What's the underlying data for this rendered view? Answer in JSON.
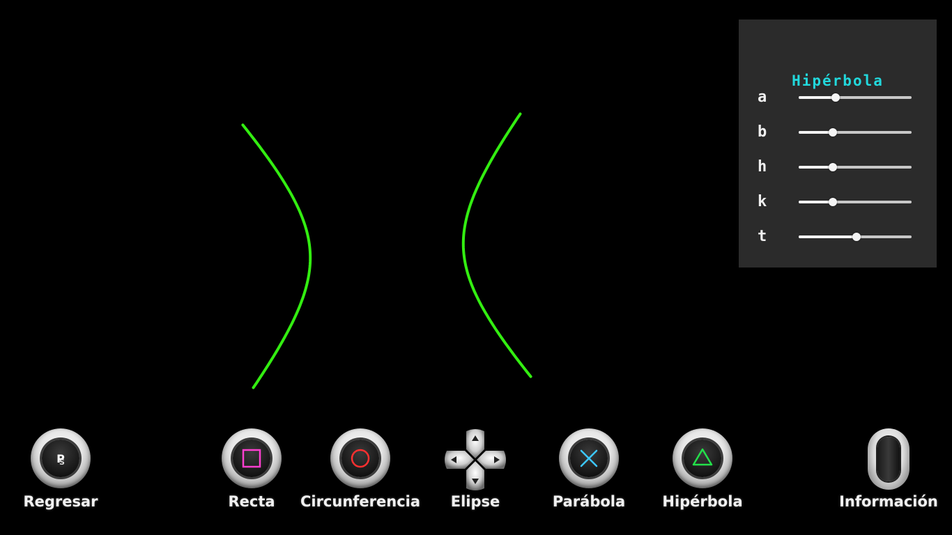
{
  "panel": {
    "title": "Hipérbola",
    "params": [
      {
        "label": "a",
        "value": 0.33
      },
      {
        "label": "b",
        "value": 0.3
      },
      {
        "label": "h",
        "value": 0.3
      },
      {
        "label": "k",
        "value": 0.3
      },
      {
        "label": "t",
        "value": 0.51
      }
    ]
  },
  "curve": {
    "color": "#33ee11"
  },
  "nav": {
    "regresar": "Regresar",
    "recta": "Recta",
    "circunferencia": "Circunferencia",
    "elipse": "Elipse",
    "parabola": "Parábola",
    "hiperbola": "Hipérbola",
    "informacion": "Información"
  },
  "icons": {
    "regresar": "playstation-logo-icon",
    "recta": "square-icon",
    "circunferencia": "circle-icon",
    "elipse": "dpad-icon",
    "parabola": "cross-icon",
    "hiperbola": "triangle-icon",
    "informacion": "touchpad-icon"
  },
  "colors": {
    "background": "#000000",
    "panel": "#2b2b2b",
    "title": "#22d8dc",
    "square": "#ff3fd0",
    "circle": "#ff3030",
    "cross": "#3cc8ff",
    "triangle": "#23e04a"
  }
}
